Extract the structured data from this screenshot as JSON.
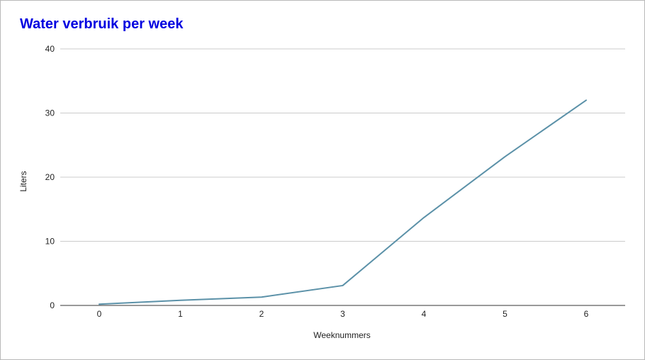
{
  "chart_data": {
    "type": "line",
    "title": "Water verbruik per week",
    "xlabel": "Weeknummers",
    "ylabel": "Liters",
    "x": [
      0,
      1,
      2,
      3,
      4,
      5,
      6
    ],
    "series": [
      {
        "values": [
          0.2,
          0.8,
          1.3,
          3.1,
          13.7,
          23.2,
          32.0
        ],
        "color": "#5b91a8"
      }
    ],
    "xlim": [
      0,
      6
    ],
    "ylim": [
      0,
      40
    ],
    "yticks": [
      0,
      10,
      20,
      30,
      40
    ],
    "xticks": [
      0,
      1,
      2,
      3,
      4,
      5,
      6
    ],
    "grid": true,
    "legend": "none"
  }
}
